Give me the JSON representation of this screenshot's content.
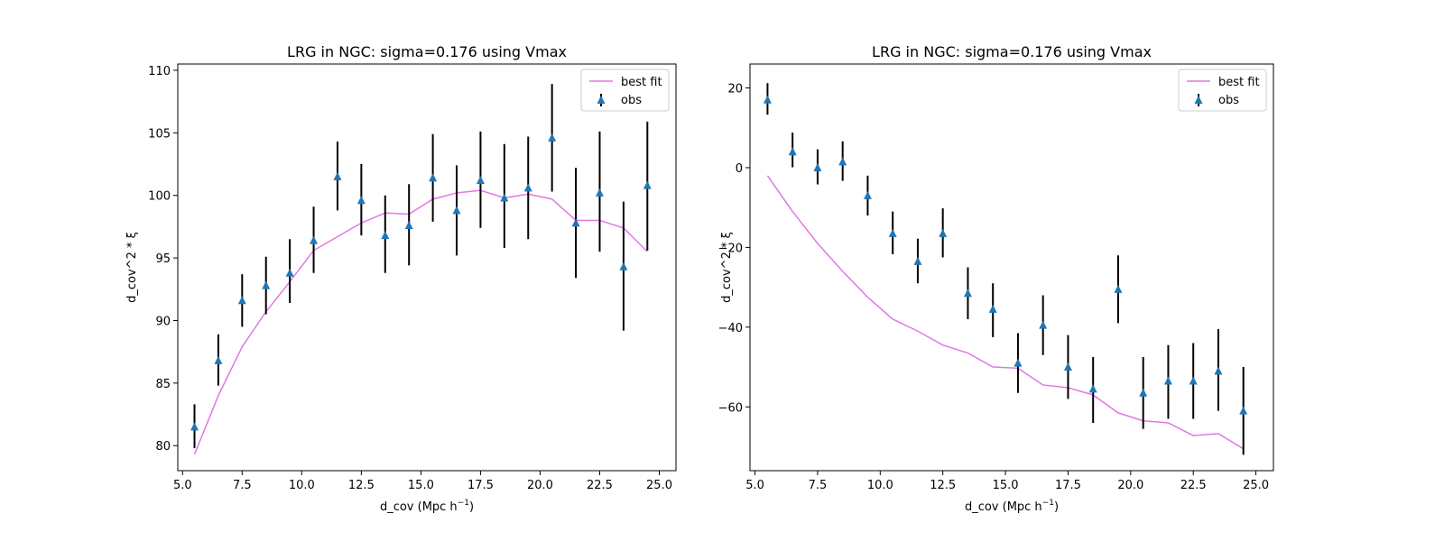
{
  "chart_data": [
    {
      "type": "line",
      "title": "LRG in NGC: sigma=0.176 using Vmax",
      "xlabel": "d_cov (Mpc h",
      "xlabel_sup": "−1",
      "xlabel_end": ")",
      "ylabel": "d_cov^2 * ξ",
      "xlim": [
        4.8,
        25.7
      ],
      "ylim": [
        78.0,
        110.5
      ],
      "xticks": [
        5.0,
        7.5,
        10.0,
        12.5,
        15.0,
        17.5,
        20.0,
        22.5,
        25.0
      ],
      "xtick_labels": [
        "5.0",
        "7.5",
        "10.0",
        "12.5",
        "15.0",
        "17.5",
        "20.0",
        "22.5",
        "25.0"
      ],
      "yticks": [
        80,
        85,
        90,
        95,
        100,
        105,
        110
      ],
      "ytick_labels": [
        "80",
        "85",
        "90",
        "95",
        "100",
        "105",
        "110"
      ],
      "legend": {
        "position": "top-right",
        "entries": [
          "best fit",
          "obs"
        ]
      },
      "series": [
        {
          "name": "best fit",
          "kind": "line",
          "color": "#e377e3",
          "x": [
            5.5,
            6.5,
            7.5,
            8.5,
            9.5,
            10.5,
            11.5,
            12.5,
            13.5,
            14.5,
            15.5,
            16.5,
            17.5,
            18.5,
            19.5,
            20.5,
            21.5,
            22.5,
            23.5,
            24.5
          ],
          "y": [
            79.3,
            84.0,
            87.9,
            90.7,
            93.1,
            95.6,
            96.7,
            97.8,
            98.6,
            98.5,
            99.7,
            100.2,
            100.4,
            99.8,
            100.1,
            99.7,
            98.0,
            98.0,
            97.4,
            95.5
          ]
        },
        {
          "name": "obs",
          "kind": "errorbar",
          "color": "#1f77b4",
          "error_color": "#000000",
          "x": [
            5.5,
            6.5,
            7.5,
            8.5,
            9.5,
            10.5,
            11.5,
            12.5,
            13.5,
            14.5,
            15.5,
            16.5,
            17.5,
            18.5,
            19.5,
            20.5,
            21.5,
            22.5,
            23.5,
            24.5
          ],
          "y": [
            81.5,
            86.8,
            91.6,
            92.8,
            93.8,
            96.4,
            101.5,
            99.6,
            96.8,
            97.6,
            101.4,
            98.8,
            101.2,
            99.8,
            100.6,
            104.6,
            97.8,
            100.2,
            94.3,
            100.8
          ],
          "ylow": [
            79.8,
            84.8,
            89.5,
            90.5,
            91.4,
            93.8,
            98.8,
            96.8,
            93.8,
            94.4,
            97.9,
            95.2,
            97.4,
            95.8,
            96.5,
            100.3,
            93.4,
            95.5,
            89.2,
            95.6
          ],
          "yhigh": [
            83.3,
            88.9,
            93.7,
            95.1,
            96.5,
            99.1,
            104.3,
            102.5,
            100.0,
            100.9,
            104.9,
            102.4,
            105.1,
            104.1,
            104.7,
            108.9,
            102.2,
            105.1,
            99.5,
            105.9
          ]
        }
      ]
    },
    {
      "type": "line",
      "title": "LRG in NGC: sigma=0.176 using Vmax",
      "xlabel": "d_cov (Mpc h",
      "xlabel_sup": "−1",
      "xlabel_end": ")",
      "ylabel": "d_cov^2 * ξ",
      "xlim": [
        4.8,
        25.7
      ],
      "ylim": [
        -76.0,
        26.0
      ],
      "xticks": [
        5.0,
        7.5,
        10.0,
        12.5,
        15.0,
        17.5,
        20.0,
        22.5,
        25.0
      ],
      "xtick_labels": [
        "5.0",
        "7.5",
        "10.0",
        "12.5",
        "15.0",
        "17.5",
        "20.0",
        "22.5",
        "25.0"
      ],
      "yticks": [
        20,
        0,
        -20,
        -40,
        -60
      ],
      "ytick_labels": [
        "20",
        "0",
        "−20",
        "−40",
        "−60"
      ],
      "legend": {
        "position": "top-right",
        "entries": [
          "best fit",
          "obs"
        ]
      },
      "series": [
        {
          "name": "best fit",
          "kind": "line",
          "color": "#e377e3",
          "x": [
            5.5,
            6.5,
            7.5,
            8.5,
            9.5,
            10.5,
            11.5,
            12.5,
            13.5,
            14.5,
            15.5,
            16.5,
            17.5,
            18.5,
            19.5,
            20.5,
            21.5,
            22.5,
            23.5,
            24.5
          ],
          "y": [
            -2.0,
            -11.0,
            -19.0,
            -26.0,
            -32.5,
            -38.0,
            -41.0,
            -44.5,
            -46.5,
            -50.0,
            -50.3,
            -54.5,
            -55.2,
            -57.0,
            -61.5,
            -63.5,
            -64.0,
            -67.2,
            -66.7,
            -70.5
          ]
        },
        {
          "name": "obs",
          "kind": "errorbar",
          "color": "#1f77b4",
          "error_color": "#000000",
          "x": [
            5.5,
            6.5,
            7.5,
            8.5,
            9.5,
            10.5,
            11.5,
            12.5,
            13.5,
            14.5,
            15.5,
            16.5,
            17.5,
            18.5,
            19.5,
            20.5,
            21.5,
            22.5,
            23.5,
            24.5
          ],
          "y": [
            17.0,
            4.0,
            0.0,
            1.5,
            -7.0,
            -16.5,
            -23.5,
            -16.5,
            -31.5,
            -35.5,
            -49.0,
            -39.5,
            -50.0,
            -55.5,
            -30.5,
            -56.5,
            -53.5,
            -53.5,
            -51.0,
            -61.0
          ],
          "ylow": [
            13.3,
            0.1,
            -4.2,
            -3.3,
            -12.0,
            -21.7,
            -29.0,
            -22.5,
            -38.0,
            -42.5,
            -56.5,
            -47.0,
            -58.0,
            -64.0,
            -39.0,
            -65.5,
            -63.0,
            -63.0,
            -61.0,
            -72.0
          ],
          "yhigh": [
            21.2,
            8.8,
            4.6,
            6.6,
            -2.0,
            -11.0,
            -17.8,
            -10.2,
            -25.0,
            -29.0,
            -41.5,
            -32.0,
            -42.0,
            -47.5,
            -22.0,
            -47.5,
            -44.5,
            -44.0,
            -40.5,
            -50.0
          ]
        }
      ]
    }
  ]
}
